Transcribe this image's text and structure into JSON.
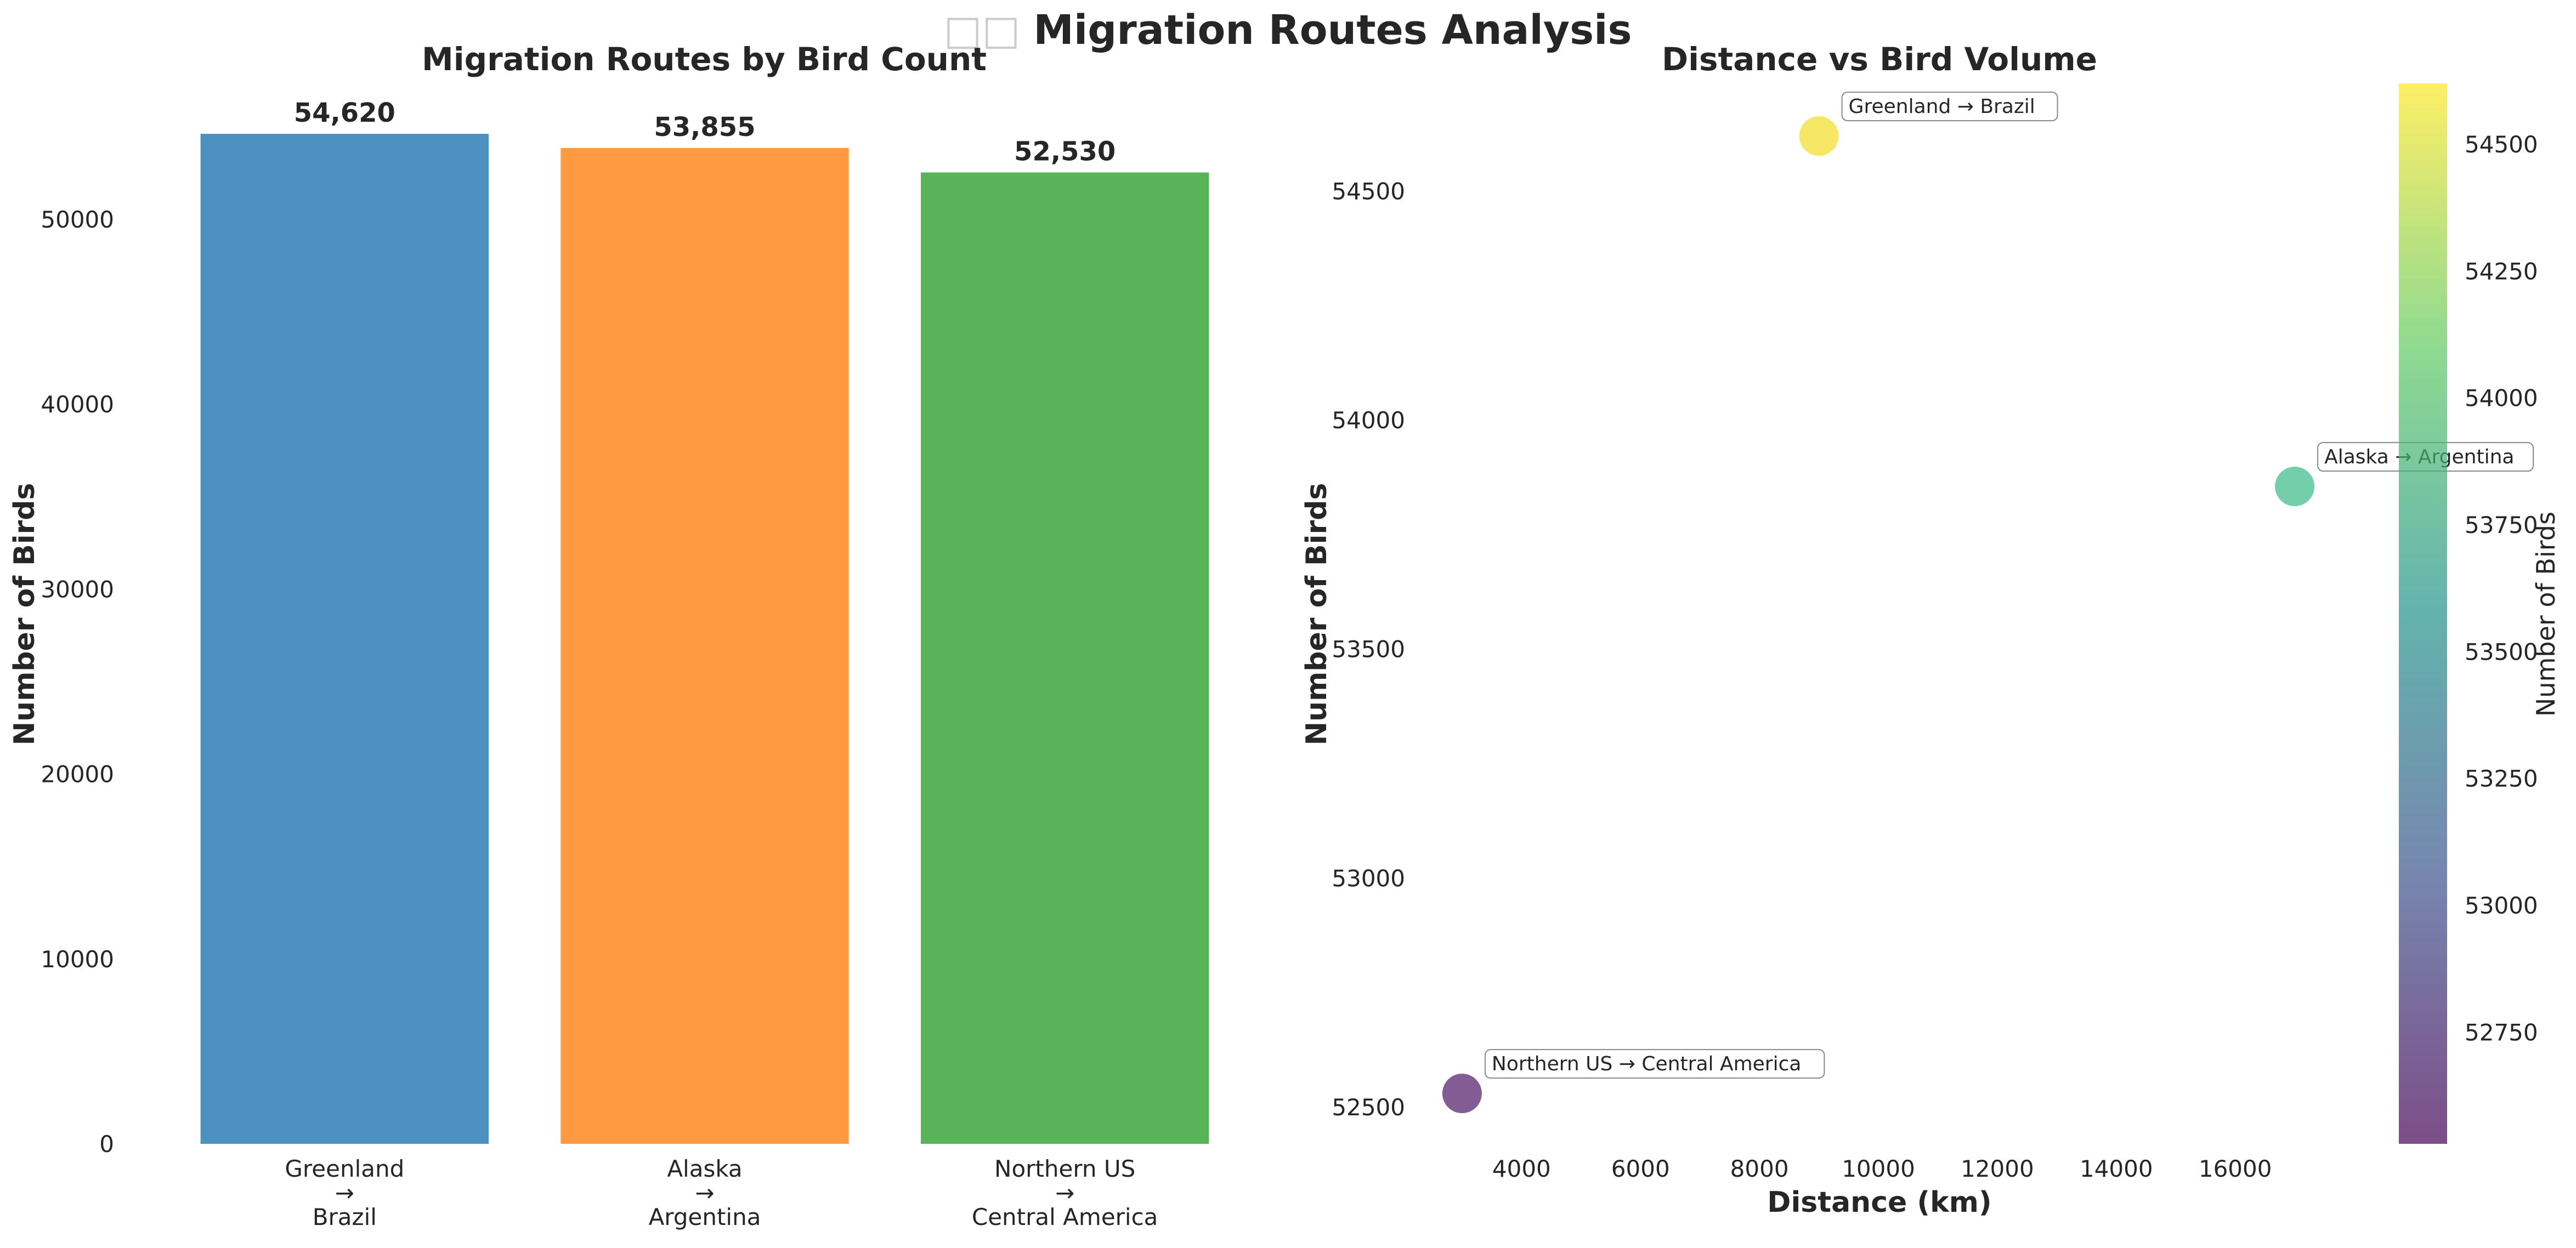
{
  "figure": {
    "suptitle_icon": "□□",
    "suptitle": "Migration Routes Analysis"
  },
  "chart_data": [
    {
      "type": "bar",
      "title": "Migration Routes by Bird Count",
      "xlabel": "",
      "ylabel": "Number of Birds",
      "categories": [
        [
          "Greenland",
          "→",
          "Brazil"
        ],
        [
          "Alaska",
          "→",
          "Argentina"
        ],
        [
          "Northern US",
          "→",
          "Central America"
        ]
      ],
      "values": [
        54620,
        53855,
        52530
      ],
      "value_labels": [
        "54,620",
        "53,855",
        "52,530"
      ],
      "colors": [
        "#4c91c2",
        "#ff9a42",
        "#59b459"
      ],
      "ylim": [
        0,
        57350
      ],
      "yticks": [
        0,
        10000,
        20000,
        30000,
        40000,
        50000
      ],
      "grid": false
    },
    {
      "type": "scatter",
      "title": "Distance vs Bird Volume",
      "xlabel": "Distance (km)",
      "ylabel": "Number of Birds",
      "points": [
        {
          "label": "Greenland → Brazil",
          "x": 9000,
          "y": 54620,
          "color": "#f4e34b"
        },
        {
          "label": "Alaska → Argentina",
          "x": 17000,
          "y": 53855,
          "color": "#5cc59a"
        },
        {
          "label": "Northern US → Central America",
          "x": 3000,
          "y": 52530,
          "color": "#6c3f80"
        }
      ],
      "xlim": [
        2300,
        17700
      ],
      "ylim": [
        52420,
        54735
      ],
      "xticks": [
        4000,
        6000,
        8000,
        10000,
        12000,
        14000,
        16000
      ],
      "yticks": [
        52500,
        53000,
        53500,
        54000,
        54500
      ],
      "colorbar": {
        "label": "Number of Birds",
        "range": [
          52530,
          54620
        ],
        "ticks": [
          52750,
          53000,
          53250,
          53500,
          53750,
          54000,
          54250,
          54500
        ],
        "colormap": [
          "#440154",
          "#3b528b",
          "#21918c",
          "#5ec962",
          "#fde725"
        ]
      },
      "grid": false
    }
  ]
}
